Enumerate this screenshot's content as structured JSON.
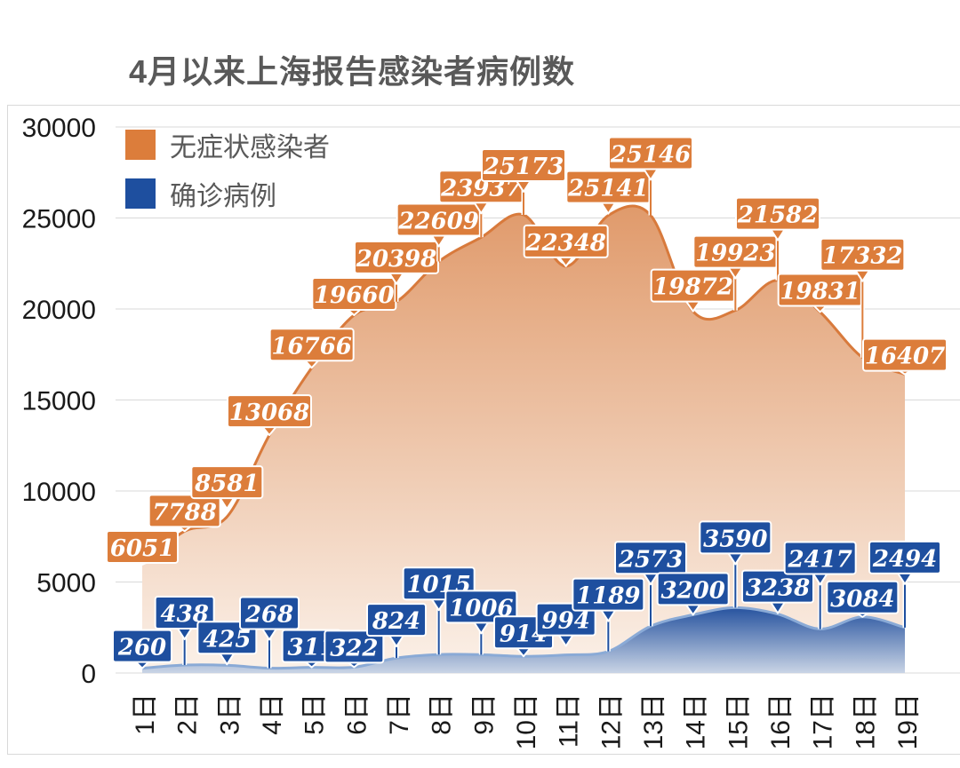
{
  "chart_data": {
    "type": "area",
    "title": "4月以来上海报告感染者病例数",
    "x_labels": [
      "1日",
      "2日",
      "3日",
      "4日",
      "5日",
      "6日",
      "7日",
      "8日",
      "9日",
      "10日",
      "11日",
      "12日",
      "13日",
      "14日",
      "15日",
      "16日",
      "17日",
      "18日",
      "19日"
    ],
    "ylim": [
      0,
      30000
    ],
    "ytick_labels": [
      "0",
      "5000",
      "10000",
      "15000",
      "20000",
      "25000",
      "30000"
    ],
    "grid": true,
    "legend_position": "top-left",
    "series": [
      {
        "name": "无症状感染者",
        "color": "#DC7D3B",
        "line_color": "#D87A3C",
        "gradient": [
          "#E09A6B",
          "#FBF1E9"
        ],
        "values": [
          6051,
          7788,
          8581,
          13068,
          16766,
          19660,
          20398,
          22609,
          23937,
          25173,
          22348,
          25141,
          25146,
          19872,
          19923,
          21582,
          19831,
          17332,
          16407
        ],
        "label_offsets": [
          18,
          23,
          39,
          27,
          26,
          24,
          50,
          47,
          57,
          56,
          28,
          32,
          70,
          29,
          66,
          75,
          25,
          116,
          22
        ]
      },
      {
        "name": "确诊病例",
        "color": "#1E4F9F",
        "line_color": "#8AAAD6",
        "gradient": [
          "#27539F",
          "#C9D4E5"
        ],
        "values": [
          260,
          438,
          425,
          268,
          311,
          322,
          824,
          1015,
          1006,
          914,
          994,
          1189,
          2573,
          3200,
          3590,
          3238,
          2417,
          3084,
          2494
        ],
        "label_offsets": [
          25,
          59,
          31,
          62,
          24,
          23,
          43,
          80,
          54,
          27,
          40,
          64,
          77,
          29,
          79,
          31,
          80,
          22,
          79
        ]
      }
    ],
    "colors": {
      "grid": "#D9D9D9",
      "frame": "#D9D9D9",
      "tick_text": "#1A1A1A",
      "title_text": "#595959",
      "label_text": "#FFFFFF"
    }
  }
}
